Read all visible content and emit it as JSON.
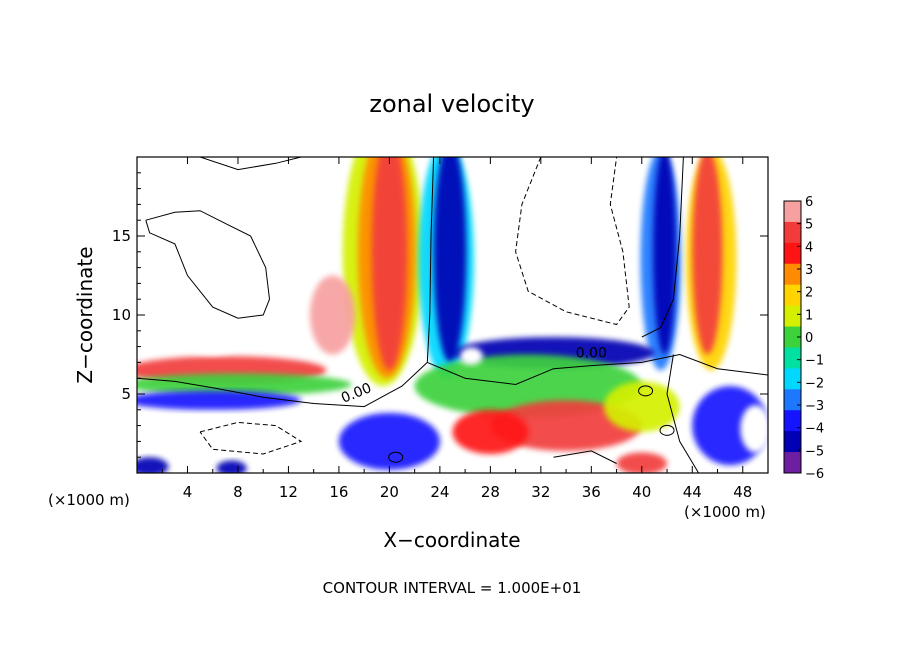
{
  "chart_data": {
    "type": "heatmap",
    "title": "zonal velocity",
    "xlabel": "X−coordinate",
    "ylabel": "Z−coordinate",
    "x_unit_left": "(×1000 m)",
    "x_unit_right": "(×1000 m)",
    "footer": "CONTOUR INTERVAL = 1.000E+01",
    "xlim": [
      0,
      50
    ],
    "ylim": [
      0,
      20
    ],
    "x_ticks": [
      4,
      8,
      12,
      16,
      20,
      24,
      28,
      32,
      36,
      40,
      44,
      48
    ],
    "y_ticks": [
      5,
      10,
      15
    ],
    "contour_labels": [
      "0.00",
      "0.00"
    ],
    "colorbar": {
      "ticks": [
        "6",
        "5",
        "4",
        "3",
        "2",
        "1",
        "0",
        "−1",
        "−2",
        "−3",
        "−4",
        "−5",
        "−6"
      ],
      "range": [
        -6,
        6
      ],
      "colors": [
        "#f7a0a0",
        "#f23c3c",
        "#ff1414",
        "#ff8c00",
        "#ffd400",
        "#d4f000",
        "#3cd23c",
        "#00e0a0",
        "#00d8ff",
        "#1e78ff",
        "#1414ff",
        "#0000b4",
        "#6e1ea0"
      ]
    },
    "features": [
      {
        "label": "positive jet column",
        "x": [
          16,
          22
        ],
        "z": [
          5,
          20
        ]
      },
      {
        "label": "negative jet column",
        "x": [
          23,
          27
        ],
        "z": [
          7,
          20
        ]
      },
      {
        "label": "negative jet column",
        "x": [
          40,
          43
        ],
        "z": [
          7,
          20
        ]
      },
      {
        "label": "positive jet column",
        "x": [
          43,
          47
        ],
        "z": [
          7,
          20
        ]
      },
      {
        "label": "low-level shear layer",
        "x": [
          0,
          50
        ],
        "z": [
          4,
          8
        ]
      }
    ]
  }
}
